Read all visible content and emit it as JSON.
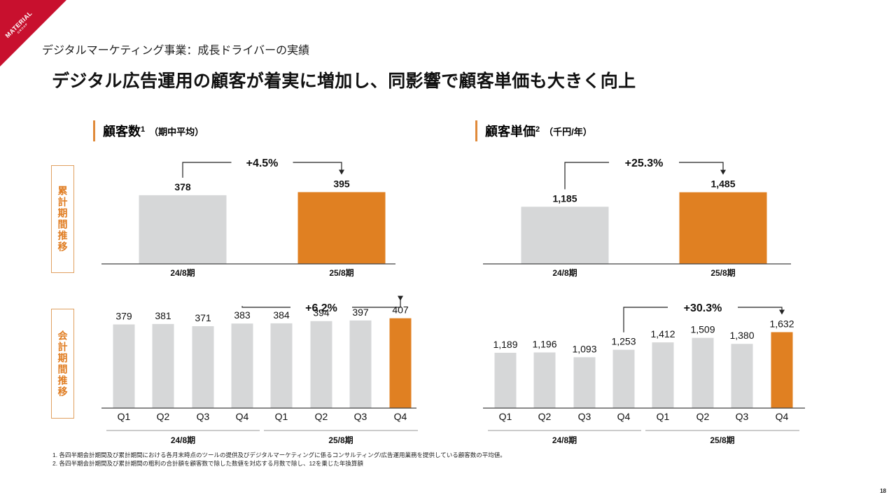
{
  "brand": {
    "logo_text": "MATERIAL",
    "logo_sub": "GROUP",
    "color_red": "#c8102e"
  },
  "header": {
    "subtitle": "デジタルマーケティング事業：成長ドライバーの実績",
    "headline": "デジタル広告運用の顧客が着実に増加し、同影響で顧客単価も大きく向上"
  },
  "colors": {
    "accent_orange": "#e08022",
    "bar_gray": "#d6d7d8",
    "label_orange": "#e07d22"
  },
  "panels": {
    "left": {
      "title": "顧客数",
      "sup": "1",
      "unit": "（期中平均）"
    },
    "right": {
      "title": "顧客単価",
      "sup": "2",
      "unit": "（千円/年）"
    }
  },
  "side_labels": {
    "cumulative": "累計期間推移",
    "quarterly": "会計期間推移"
  },
  "chart_data": [
    {
      "id": "customers-annual",
      "type": "bar",
      "title": "顧客数（期中平均）",
      "categories": [
        "24/8期",
        "25/8期"
      ],
      "values": [
        378,
        395
      ],
      "value_labels": [
        "378",
        "395"
      ],
      "highlight_index": 1,
      "growth": {
        "label": "+4.5%",
        "from_index": 0,
        "to_index": 1
      },
      "ylim": [
        0,
        470
      ]
    },
    {
      "id": "unit-price-annual",
      "type": "bar",
      "title": "顧客単価（千円/年）",
      "categories": [
        "24/8期",
        "25/8期"
      ],
      "values": [
        1185,
        1485
      ],
      "value_labels": [
        "1,185",
        "1,485"
      ],
      "highlight_index": 1,
      "growth": {
        "label": "+25.3%",
        "from_index": 0,
        "to_index": 1
      },
      "ylim": [
        0,
        1770
      ]
    },
    {
      "id": "customers-quarterly",
      "type": "bar",
      "title": "顧客数（会計期間推移）",
      "categories": [
        "Q1",
        "Q2",
        "Q3",
        "Q4",
        "Q1",
        "Q2",
        "Q3",
        "Q4"
      ],
      "groups": [
        {
          "label": "24/8期",
          "range": [
            0,
            3
          ]
        },
        {
          "label": "25/8期",
          "range": [
            4,
            7
          ]
        }
      ],
      "values": [
        379,
        381,
        371,
        383,
        384,
        394,
        397,
        407
      ],
      "value_labels": [
        "379",
        "381",
        "371",
        "383",
        "384",
        "394",
        "397",
        "407"
      ],
      "highlight_index": 7,
      "growth": {
        "label": "+6.2%",
        "from_index": 3,
        "to_index": 7
      },
      "ylim": [
        0,
        390
      ]
    },
    {
      "id": "unit-price-quarterly",
      "type": "bar",
      "title": "顧客単価（会計期間推移）",
      "categories": [
        "Q1",
        "Q2",
        "Q3",
        "Q4",
        "Q1",
        "Q2",
        "Q3",
        "Q4"
      ],
      "groups": [
        {
          "label": "24/8期",
          "range": [
            0,
            3
          ]
        },
        {
          "label": "25/8期",
          "range": [
            4,
            7
          ]
        }
      ],
      "values": [
        1189,
        1196,
        1093,
        1253,
        1412,
        1509,
        1380,
        1632
      ],
      "value_labels": [
        "1,189",
        "1,196",
        "1,093",
        "1,253",
        "1,412",
        "1,509",
        "1,380",
        "1,632"
      ],
      "highlight_index": 7,
      "growth": {
        "label": "+30.3%",
        "from_index": 3,
        "to_index": 7
      },
      "ylim": [
        0,
        1850
      ]
    }
  ],
  "footnotes": [
    "1. 各四半期会計期間及び累計期間における各月末時点のツールの提供及びデジタルマーケティングに係るコンサルティング/広告運用業務を提供している顧客数の平均値。",
    "2. 各四半期会計期間及び累計期間の粗利の合計額を顧客数で除した数値を対応する月数で除し、12を乗じた年換算額"
  ],
  "page_number": "18"
}
